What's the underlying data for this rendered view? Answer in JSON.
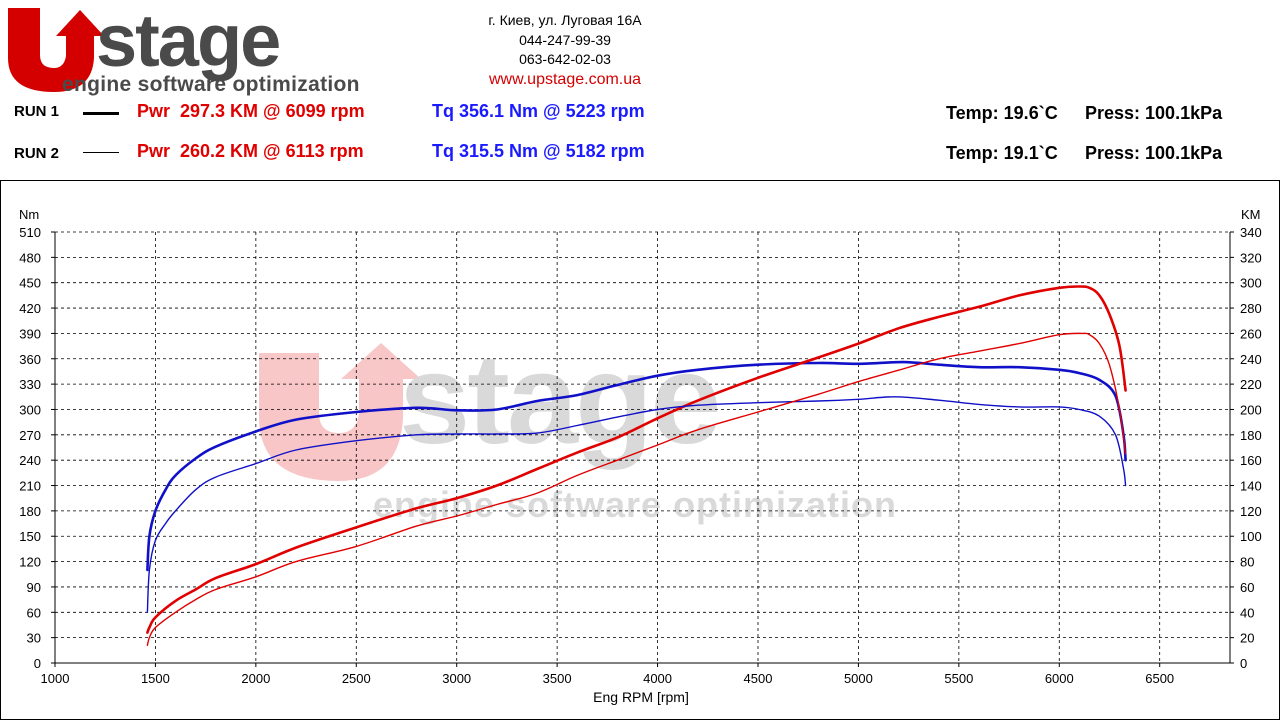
{
  "brand": {
    "logo_text": "UPstage",
    "tagline": "engine software optimization",
    "address": "г. Киев, ул. Луговая 16А",
    "phone1": "044-247-99-39",
    "phone2": "063-642-02-03",
    "website": "www.upstage.com.ua"
  },
  "runs": [
    {
      "label": "RUN 1",
      "pwr": "Pwr  297.3 KM @ 6099 rpm",
      "tq": "Tq 356.1 Nm @ 5223 rpm",
      "temp": "Temp: 19.6`C",
      "press": "Press: 100.1kPa"
    },
    {
      "label": "RUN 2",
      "pwr": "Pwr  260.2 KM @ 6113 rpm",
      "tq": "Tq 315.5 Nm @ 5182 rpm",
      "temp": "Temp: 19.1`C",
      "press": "Press: 100.1kPa"
    }
  ],
  "colors": {
    "power": "#e00000",
    "torque": "#1010c8",
    "site": "#d40000",
    "logo_red": "#d40000",
    "logo_gray": "#4a4a4a"
  },
  "chart_data": {
    "type": "line",
    "xlabel": "Eng RPM [rpm]",
    "ylabel_left": "Nm",
    "ylabel_right": "KM",
    "xlim": [
      1000,
      6850
    ],
    "ylim_left": [
      0,
      510
    ],
    "ylim_right": [
      0,
      340
    ],
    "xticks": [
      1000,
      1500,
      2000,
      2500,
      3000,
      3500,
      4000,
      4500,
      5000,
      5500,
      6000,
      6500
    ],
    "yticks_left": [
      0,
      30,
      60,
      90,
      120,
      150,
      180,
      210,
      240,
      270,
      300,
      330,
      360,
      390,
      420,
      450,
      480,
      510
    ],
    "yticks_right": [
      0,
      20,
      40,
      60,
      80,
      100,
      120,
      140,
      160,
      180,
      200,
      220,
      240,
      260,
      280,
      300,
      320,
      340
    ],
    "grid": true,
    "watermark": true,
    "series": [
      {
        "name": "RUN 1",
        "quantity": "torque",
        "axis": "left",
        "width": 2.6,
        "x": [
          1460,
          1470,
          1500,
          1550,
          1600,
          1700,
          1800,
          2000,
          2200,
          2500,
          2800,
          3000,
          3200,
          3400,
          3600,
          3800,
          4000,
          4200,
          4500,
          4800,
          5000,
          5223,
          5400,
          5600,
          5800,
          6000,
          6100,
          6200,
          6280,
          6320,
          6330
        ],
        "y": [
          110,
          150,
          180,
          205,
          222,
          242,
          256,
          274,
          288,
          297,
          302,
          299,
          300,
          310,
          317,
          329,
          340,
          347,
          353,
          355,
          354,
          356,
          353,
          350,
          350,
          347,
          343,
          335,
          316,
          270,
          240
        ]
      },
      {
        "name": "RUN 1",
        "quantity": "power",
        "axis": "right",
        "width": 2.6,
        "x": [
          1460,
          1470,
          1500,
          1600,
          1700,
          1800,
          2000,
          2200,
          2500,
          2800,
          3000,
          3200,
          3400,
          3600,
          3800,
          4000,
          4200,
          4500,
          4800,
          5000,
          5200,
          5400,
          5600,
          5800,
          6000,
          6099,
          6150,
          6200,
          6250,
          6300,
          6330
        ],
        "y": [
          24,
          28,
          36,
          49,
          58,
          67,
          78,
          91,
          107,
          122,
          130,
          140,
          153,
          166,
          178,
          193,
          207,
          225,
          241,
          252,
          264,
          273,
          281,
          290,
          296,
          297,
          296,
          290,
          275,
          250,
          215
        ]
      },
      {
        "name": "RUN 2",
        "quantity": "torque",
        "axis": "left",
        "width": 1.4,
        "x": [
          1460,
          1470,
          1500,
          1550,
          1600,
          1700,
          1800,
          2000,
          2200,
          2500,
          2800,
          3000,
          3200,
          3400,
          3600,
          3800,
          4000,
          4200,
          4500,
          4800,
          5000,
          5182,
          5400,
          5600,
          5800,
          6000,
          6100,
          6200,
          6280,
          6320,
          6330
        ],
        "y": [
          60,
          110,
          145,
          165,
          180,
          205,
          220,
          236,
          252,
          263,
          270,
          271,
          271,
          272,
          281,
          291,
          300,
          305,
          308,
          310,
          312,
          315,
          311,
          306,
          303,
          303,
          300,
          292,
          270,
          230,
          210
        ]
      },
      {
        "name": "RUN 2",
        "quantity": "power",
        "axis": "right",
        "width": 1.4,
        "x": [
          1460,
          1470,
          1500,
          1600,
          1700,
          1800,
          2000,
          2200,
          2500,
          2800,
          3000,
          3200,
          3400,
          3600,
          3800,
          4000,
          4200,
          4500,
          4800,
          5000,
          5200,
          5400,
          5600,
          5800,
          6000,
          6113,
          6150,
          6200,
          6250,
          6300,
          6330
        ],
        "y": [
          14,
          20,
          28,
          40,
          50,
          58,
          68,
          80,
          92,
          108,
          116,
          125,
          134,
          148,
          160,
          172,
          184,
          198,
          212,
          222,
          231,
          240,
          246,
          252,
          259,
          260,
          259,
          252,
          235,
          200,
          165
        ]
      }
    ]
  }
}
